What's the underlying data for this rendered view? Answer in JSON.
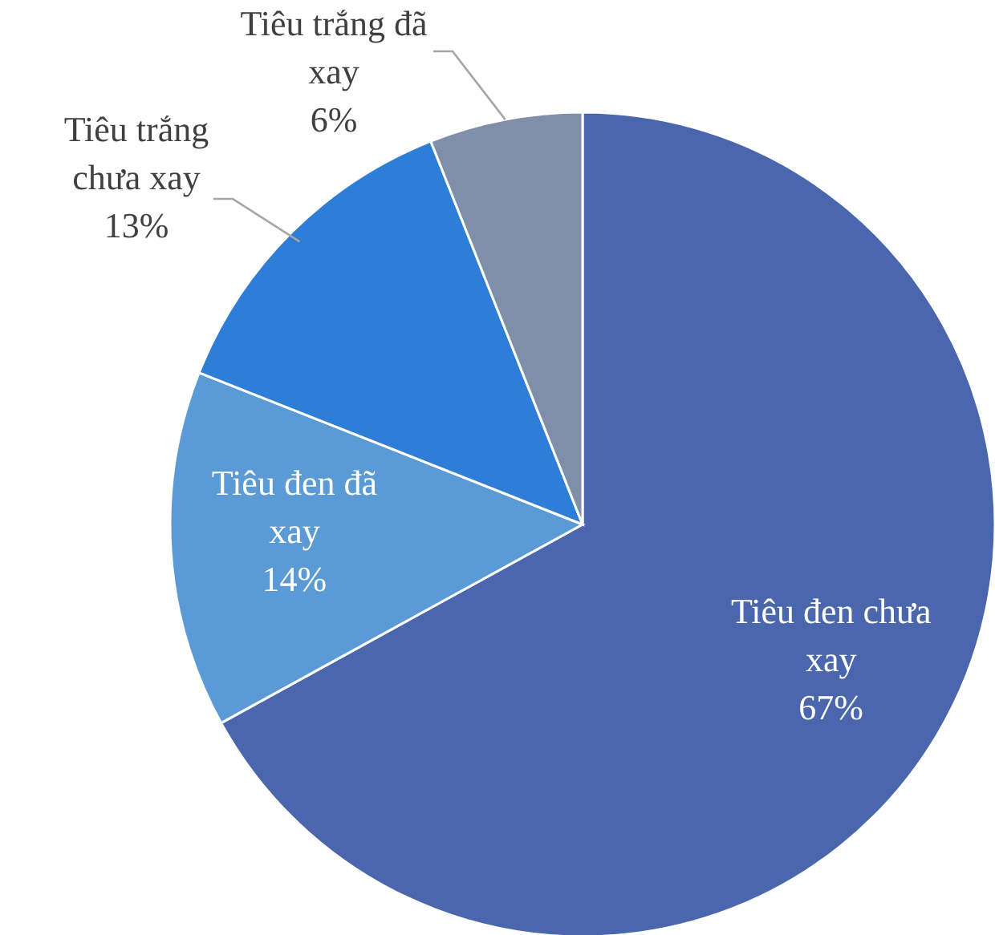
{
  "chart_data": {
    "type": "pie",
    "categories": [
      "Tiêu đen chưa xay",
      "Tiêu đen đã xay",
      "Tiêu trắng chưa xay",
      "Tiêu trắng đã xay"
    ],
    "values": [
      67,
      14,
      13,
      6
    ],
    "value_labels": [
      "67%",
      "14%",
      "13%",
      "6%"
    ],
    "colors": [
      "#4a66ad",
      "#5b9bd5",
      "#2e7dd6",
      "#7f8fa9"
    ],
    "legend": false
  }
}
